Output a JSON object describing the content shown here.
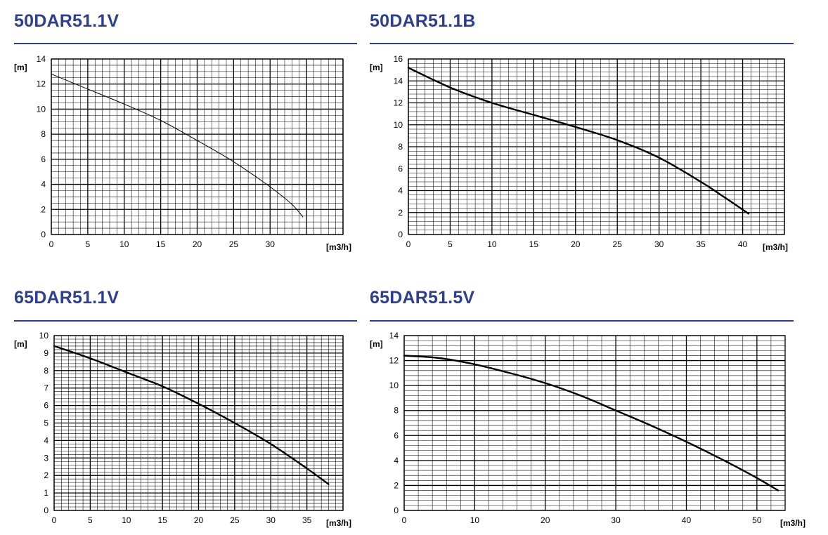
{
  "colors": {
    "title": "#2d3f8e",
    "grid": "#000000",
    "curve": "#000000"
  },
  "chart_data": [
    {
      "type": "line",
      "title": "50DAR51.1V",
      "xlabel": "[m3/h]",
      "ylabel": "[m]",
      "xlim": [
        0,
        40
      ],
      "ylim": [
        0,
        14
      ],
      "xticks": [
        0,
        5,
        10,
        15,
        20,
        25,
        30
      ],
      "yticks": [
        0,
        2,
        4,
        6,
        8,
        10,
        12,
        14
      ],
      "grid": true,
      "series": [
        {
          "x": [
            0,
            5,
            10,
            15,
            20,
            25,
            30,
            33,
            34.5
          ],
          "y": [
            12.8,
            11.6,
            10.4,
            9.1,
            7.5,
            5.8,
            3.8,
            2.4,
            1.4
          ]
        }
      ]
    },
    {
      "type": "line",
      "title": "50DAR51.1B",
      "xlabel": "[m3/h]",
      "ylabel": "[m]",
      "xlim": [
        0,
        45
      ],
      "ylim": [
        0,
        16
      ],
      "xticks": [
        0,
        5,
        10,
        15,
        20,
        25,
        30,
        35,
        40
      ],
      "yticks": [
        0,
        2,
        4,
        6,
        8,
        10,
        12,
        14,
        16
      ],
      "grid": true,
      "series": [
        {
          "x": [
            0,
            5,
            10,
            15,
            20,
            25,
            30,
            35,
            38,
            40.7
          ],
          "y": [
            15.2,
            13.4,
            12.0,
            10.9,
            9.8,
            8.6,
            7.0,
            4.8,
            3.3,
            1.9
          ]
        }
      ]
    },
    {
      "type": "line",
      "title": "65DAR51.1V",
      "xlabel": "[m3/h]",
      "ylabel": "[m]",
      "xlim": [
        0,
        40
      ],
      "ylim": [
        0,
        10
      ],
      "xticks": [
        0,
        5,
        10,
        15,
        20,
        25,
        30,
        35
      ],
      "yticks": [
        0,
        1,
        2,
        3,
        4,
        5,
        6,
        7,
        8,
        9,
        10
      ],
      "grid": true,
      "series": [
        {
          "x": [
            0,
            5,
            10,
            15,
            20,
            25,
            30,
            35,
            38
          ],
          "y": [
            9.4,
            8.7,
            7.9,
            7.1,
            6.1,
            5.0,
            3.8,
            2.4,
            1.5
          ]
        }
      ]
    },
    {
      "type": "line",
      "title": "65DAR51.5V",
      "xlabel": "[m3/h]",
      "ylabel": "[m]",
      "xlim": [
        0,
        54
      ],
      "ylim": [
        0,
        14
      ],
      "xticks": [
        0,
        10,
        20,
        30,
        40,
        50
      ],
      "yticks": [
        0,
        2,
        4,
        6,
        8,
        10,
        12,
        14
      ],
      "grid": true,
      "series": [
        {
          "x": [
            0,
            5,
            10,
            15,
            20,
            25,
            30,
            35,
            40,
            45,
            50,
            53
          ],
          "y": [
            12.4,
            12.2,
            11.7,
            11.0,
            10.2,
            9.2,
            8.0,
            6.8,
            5.5,
            4.1,
            2.6,
            1.6
          ]
        }
      ]
    }
  ]
}
